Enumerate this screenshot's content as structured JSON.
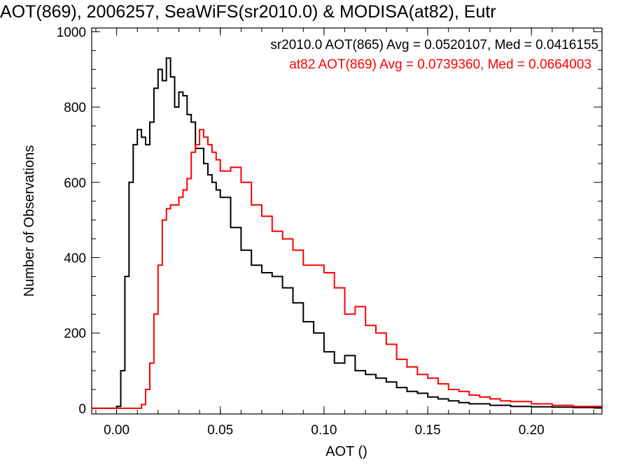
{
  "chart_data": {
    "type": "line",
    "title": "AOT(869), 2006257, SeaWiFS(sr2010.0) & MODISA(at82), Eutr",
    "xlabel": "AOT ()",
    "ylabel": "Number of Observations",
    "xlim": [
      -0.012,
      0.234
    ],
    "ylim": [
      -15,
      1010
    ],
    "xticks": [
      0.0,
      0.05,
      0.1,
      0.15,
      0.2
    ],
    "xtick_labels": [
      "0.00",
      "0.05",
      "0.10",
      "0.15",
      "0.20"
    ],
    "yticks": [
      0,
      200,
      400,
      600,
      800,
      1000
    ],
    "ytick_labels": [
      "0",
      "200",
      "400",
      "600",
      "800",
      "1000"
    ],
    "grid": false,
    "legend_position": "top-right",
    "series": [
      {
        "name": "sr2010.0 AOT(865) Avg = 0.0520107, Med = 0.0416155",
        "color": "#000000",
        "x": [
          -0.012,
          0.0,
          0.002,
          0.004,
          0.006,
          0.008,
          0.01,
          0.012,
          0.014,
          0.016,
          0.018,
          0.02,
          0.022,
          0.024,
          0.026,
          0.028,
          0.03,
          0.032,
          0.034,
          0.036,
          0.038,
          0.04,
          0.042,
          0.044,
          0.046,
          0.048,
          0.05,
          0.055,
          0.06,
          0.065,
          0.07,
          0.075,
          0.08,
          0.085,
          0.09,
          0.095,
          0.1,
          0.105,
          0.11,
          0.115,
          0.12,
          0.125,
          0.13,
          0.135,
          0.14,
          0.145,
          0.15,
          0.155,
          0.16,
          0.165,
          0.17,
          0.18,
          0.19,
          0.2,
          0.21,
          0.22,
          0.234
        ],
        "y": [
          0,
          5,
          100,
          350,
          600,
          700,
          740,
          720,
          700,
          760,
          850,
          900,
          870,
          930,
          880,
          800,
          840,
          830,
          780,
          760,
          690,
          690,
          650,
          620,
          600,
          580,
          560,
          480,
          420,
          380,
          360,
          350,
          320,
          280,
          230,
          200,
          150,
          120,
          140,
          100,
          90,
          80,
          70,
          55,
          45,
          40,
          30,
          25,
          20,
          15,
          12,
          8,
          5,
          4,
          3,
          2,
          1
        ]
      },
      {
        "name": "at82 AOT(869) Avg = 0.0739360, Med = 0.0664003",
        "color": "#ff0000",
        "x": [
          -0.012,
          0.01,
          0.012,
          0.014,
          0.016,
          0.018,
          0.02,
          0.022,
          0.024,
          0.026,
          0.028,
          0.03,
          0.032,
          0.034,
          0.036,
          0.038,
          0.04,
          0.042,
          0.044,
          0.046,
          0.048,
          0.05,
          0.055,
          0.06,
          0.065,
          0.07,
          0.075,
          0.08,
          0.085,
          0.09,
          0.095,
          0.1,
          0.105,
          0.11,
          0.115,
          0.12,
          0.125,
          0.13,
          0.135,
          0.14,
          0.145,
          0.15,
          0.155,
          0.16,
          0.165,
          0.17,
          0.175,
          0.18,
          0.185,
          0.19,
          0.2,
          0.21,
          0.22,
          0.234
        ],
        "y": [
          0,
          0,
          10,
          50,
          120,
          250,
          380,
          500,
          530,
          540,
          540,
          560,
          580,
          610,
          680,
          700,
          740,
          720,
          700,
          680,
          660,
          630,
          640,
          600,
          540,
          510,
          470,
          450,
          420,
          380,
          380,
          360,
          320,
          250,
          270,
          220,
          200,
          170,
          130,
          110,
          90,
          80,
          65,
          50,
          45,
          35,
          30,
          25,
          20,
          18,
          12,
          8,
          5,
          3
        ]
      }
    ]
  }
}
